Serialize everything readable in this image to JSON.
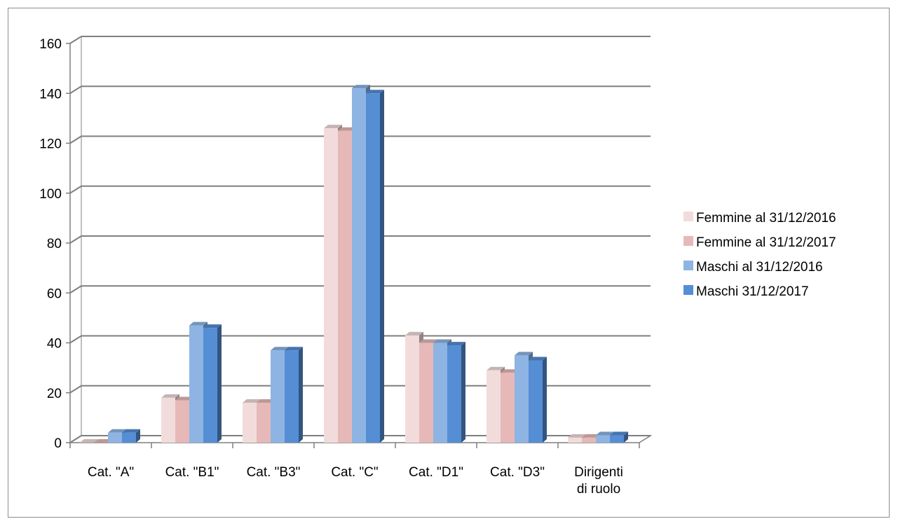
{
  "chart_data": {
    "type": "bar",
    "style": "3d-clustered-column",
    "title": "",
    "xlabel": "",
    "ylabel": "",
    "ylim": [
      0,
      160
    ],
    "yticks": [
      0,
      20,
      40,
      60,
      80,
      100,
      120,
      140,
      160
    ],
    "grid": true,
    "legend_position": "right",
    "categories": [
      [
        "Cat. \"A\""
      ],
      [
        "Cat. \"B1\""
      ],
      [
        "Cat. \"B3\""
      ],
      [
        "Cat. \"C\""
      ],
      [
        "Cat. \"D1\""
      ],
      [
        "Cat. \"D3\""
      ],
      [
        "Dirigenti",
        "di ruolo"
      ]
    ],
    "series": [
      {
        "name": "Femmine al 31/12/2016",
        "color": "#f2dcdb",
        "values": [
          0,
          18,
          16,
          126,
          43,
          29,
          2
        ]
      },
      {
        "name": "Femmine al 31/12/2017",
        "color": "#e6b9b8",
        "values": [
          0,
          17,
          16,
          125,
          40,
          28,
          2
        ]
      },
      {
        "name": "Maschi al 31/12/2016",
        "color": "#8eb4e3",
        "values": [
          4,
          47,
          37,
          142,
          40,
          35,
          3
        ]
      },
      {
        "name": "Maschi 31/12/2017",
        "color": "#558ed5",
        "values": [
          4,
          46,
          37,
          140,
          39,
          33,
          3
        ]
      }
    ]
  }
}
